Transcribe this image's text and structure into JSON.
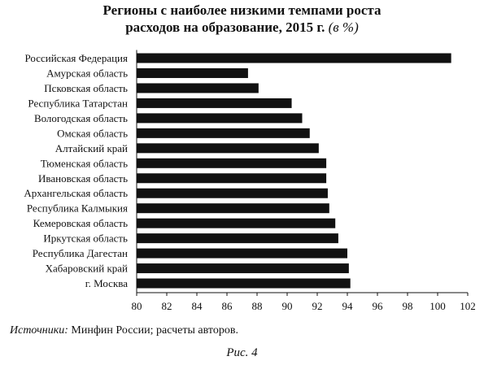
{
  "title": {
    "line1": "Регионы с наиболее низкими темпами роста",
    "line2": "расходов на образование, 2015 г.",
    "unit": "(в %)"
  },
  "source": {
    "label": "Источники:",
    "text": "Минфин России; расчеты авторов."
  },
  "caption": "Рис. 4",
  "chart_data": {
    "type": "bar",
    "orientation": "horizontal",
    "title": "Регионы с наиболее низкими темпами роста расходов на образование, 2015 г. (в %)",
    "categories": [
      "Российская Федерация",
      "Амурская область",
      "Псковская область",
      "Республика Татарстан",
      "Вологодская область",
      "Омская область",
      "Алтайский край",
      "Тюменская область",
      "Ивановская область",
      "Архангельская область",
      "Республика Калмыкия",
      "Кемеровская область",
      "Иркутская область",
      "Республика Дагестан",
      "Хабаровский край",
      "г. Москва"
    ],
    "values": [
      100.9,
      87.4,
      88.1,
      90.3,
      91.0,
      91.5,
      92.1,
      92.6,
      92.6,
      92.7,
      92.8,
      93.2,
      93.4,
      94.0,
      94.1,
      94.2
    ],
    "xlim": [
      80,
      102
    ],
    "xticks": [
      80,
      82,
      84,
      86,
      88,
      90,
      92,
      94,
      96,
      98,
      100,
      102
    ],
    "bar_color": "#111111",
    "grid": false,
    "legend": "none"
  }
}
